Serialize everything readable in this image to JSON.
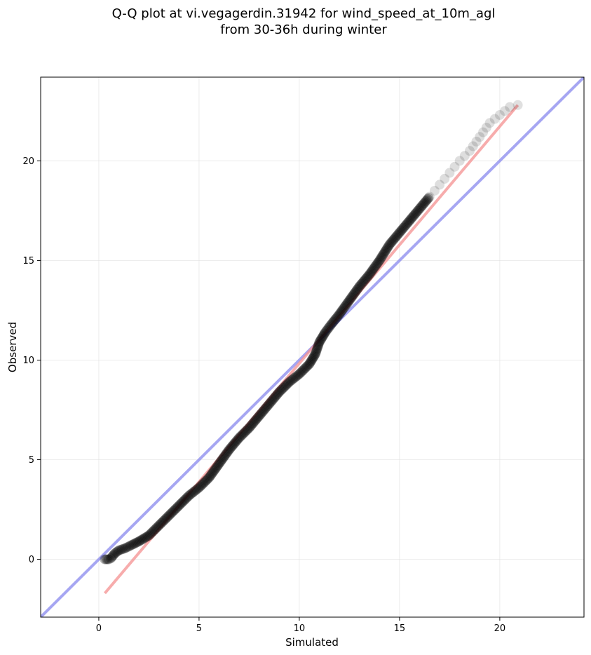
{
  "chart_data": {
    "type": "scatter",
    "title": "Q-Q plot at vi.vegagerdin.31942 for wind_speed_at_10m_agl",
    "subtitle": "from 30-36h during winter",
    "xlabel": "Simulated",
    "ylabel": "Observed",
    "xlim": [
      -2.9,
      24.2
    ],
    "ylim": [
      -2.9,
      24.2
    ],
    "xticks": [
      0,
      5,
      10,
      15,
      20
    ],
    "yticks": [
      0,
      5,
      10,
      15,
      20
    ],
    "xtick_labels": [
      "0",
      "5",
      "10",
      "15",
      "20"
    ],
    "ytick_labels": [
      "0",
      "5",
      "10",
      "15",
      "20"
    ],
    "grid": true,
    "legend": "none",
    "colors": {
      "points": "#000000",
      "identity_line": "#8888ee",
      "fit_line": "#f49090"
    },
    "identity_line": {
      "from": [
        -2.9,
        -2.9
      ],
      "to": [
        24.2,
        24.2
      ]
    },
    "fit_line": {
      "from": [
        0.3,
        -1.7
      ],
      "to": [
        20.9,
        22.8
      ]
    },
    "quantile_curve": [
      [
        0.3,
        0.0
      ],
      [
        0.5,
        0.0
      ],
      [
        0.6,
        0.05
      ],
      [
        0.8,
        0.3
      ],
      [
        1.0,
        0.45
      ],
      [
        1.3,
        0.55
      ],
      [
        1.6,
        0.7
      ],
      [
        2.0,
        0.9
      ],
      [
        2.5,
        1.2
      ],
      [
        3.0,
        1.7
      ],
      [
        3.5,
        2.2
      ],
      [
        4.0,
        2.7
      ],
      [
        4.5,
        3.2
      ],
      [
        5.0,
        3.6
      ],
      [
        5.5,
        4.1
      ],
      [
        6.0,
        4.8
      ],
      [
        6.5,
        5.5
      ],
      [
        7.0,
        6.1
      ],
      [
        7.5,
        6.6
      ],
      [
        8.0,
        7.2
      ],
      [
        8.5,
        7.8
      ],
      [
        9.0,
        8.4
      ],
      [
        9.5,
        8.9
      ],
      [
        10.0,
        9.3
      ],
      [
        10.5,
        9.8
      ],
      [
        10.8,
        10.3
      ],
      [
        11.0,
        10.9
      ],
      [
        11.3,
        11.4
      ],
      [
        11.6,
        11.8
      ],
      [
        12.0,
        12.3
      ],
      [
        12.5,
        13.0
      ],
      [
        13.0,
        13.7
      ],
      [
        13.5,
        14.3
      ],
      [
        14.0,
        15.0
      ],
      [
        14.5,
        15.8
      ],
      [
        15.0,
        16.4
      ],
      [
        15.5,
        17.0
      ],
      [
        16.0,
        17.6
      ],
      [
        16.5,
        18.2
      ],
      [
        17.0,
        18.8
      ],
      [
        17.5,
        19.4
      ],
      [
        18.0,
        20.0
      ],
      [
        18.5,
        20.5
      ],
      [
        19.0,
        21.2
      ],
      [
        19.5,
        21.9
      ],
      [
        20.0,
        22.3
      ],
      [
        20.5,
        22.7
      ],
      [
        20.9,
        22.8
      ]
    ]
  }
}
